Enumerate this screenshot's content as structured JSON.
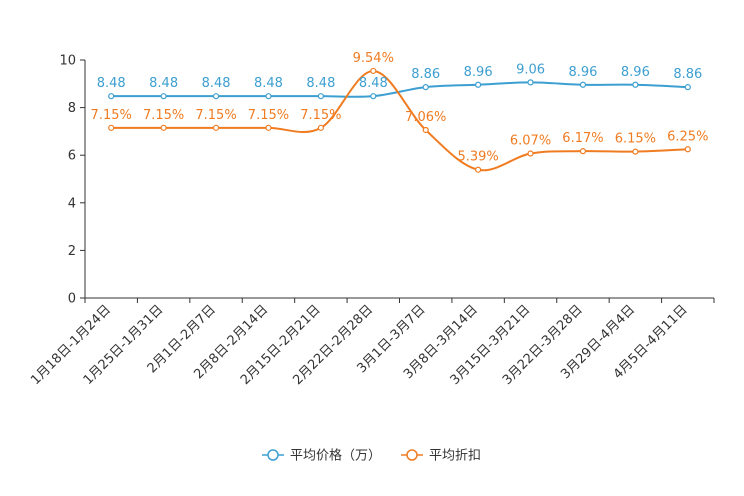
{
  "chart_data": {
    "type": "line",
    "title": "",
    "xlabel": "",
    "ylabel": "",
    "ylim": [
      0,
      10
    ],
    "yticks": [
      0,
      2,
      4,
      6,
      8,
      10
    ],
    "grid": false,
    "legend_position": "bottom-center",
    "categories": [
      "1月18日-1月24日",
      "1月25日-1月31日",
      "2月1日-2月7日",
      "2月8日-2月14日",
      "2月15日-2月21日",
      "2月22日-2月28日",
      "3月1日-3月7日",
      "3月8日-3月14日",
      "3月15日-3月21日",
      "3月22日-3月28日",
      "3月29日-4月4日",
      "4月5日-4月11日"
    ],
    "series": [
      {
        "name": "平均价格（万）",
        "color": "#3d9fd1",
        "values": [
          8.48,
          8.48,
          8.48,
          8.48,
          8.48,
          8.48,
          8.86,
          8.96,
          9.06,
          8.96,
          8.96,
          8.86
        ],
        "labels": [
          "8.48",
          "8.48",
          "8.48",
          "8.48",
          "8.48",
          "8.48",
          "8.86",
          "8.96",
          "9.06",
          "8.96",
          "8.96",
          "8.86"
        ]
      },
      {
        "name": "平均折扣",
        "color": "#f07c22",
        "values": [
          7.15,
          7.15,
          7.15,
          7.15,
          7.15,
          9.54,
          7.06,
          5.39,
          6.07,
          6.17,
          6.15,
          6.25
        ],
        "labels": [
          "7.15%",
          "7.15%",
          "7.15%",
          "7.15%",
          "7.15%",
          "9.54%",
          "7.06%",
          "5.39%",
          "6.07%",
          "6.17%",
          "6.15%",
          "6.25%"
        ]
      }
    ]
  }
}
